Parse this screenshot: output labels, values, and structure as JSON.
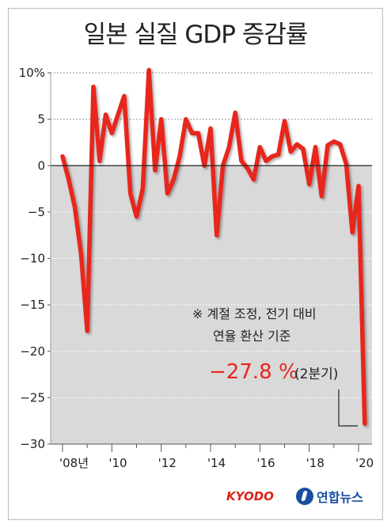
{
  "title": "일본 실질 GDP 증감률",
  "note_line1": "※ 계절 조정, 전기 대비",
  "note_line2": "연율 환산 기준",
  "callout": {
    "value": "−27.8 %",
    "period": "(2분기)",
    "color": "#e8261c"
  },
  "credits": {
    "kyodo": "KYODO",
    "yonhap": "연합뉴스",
    "kyodo_color": "#d9241b",
    "yonhap_color": "#1a4fa0"
  },
  "chart_data": {
    "type": "line",
    "title": "일본 실질 GDP 증감률",
    "ylim": [
      -30,
      10
    ],
    "yticks": [
      {
        "value": 10,
        "label": "10%"
      },
      {
        "value": 5,
        "label": "5"
      },
      {
        "value": 0,
        "label": "0"
      },
      {
        "value": -5,
        "label": "−5"
      },
      {
        "value": -10,
        "label": "−10"
      },
      {
        "value": -15,
        "label": "−15"
      },
      {
        "value": -20,
        "label": "−20"
      },
      {
        "value": -25,
        "label": "−25"
      },
      {
        "value": -30,
        "label": "−30"
      }
    ],
    "xlim": [
      2008,
      2020.5
    ],
    "xticks": [
      {
        "value": 2008,
        "label": "'08년"
      },
      {
        "value": 2010,
        "label": "'10"
      },
      {
        "value": 2012,
        "label": "'12"
      },
      {
        "value": 2014,
        "label": "'14"
      },
      {
        "value": 2016,
        "label": "'16"
      },
      {
        "value": 2018,
        "label": "'18"
      },
      {
        "value": 2020,
        "label": "'20"
      }
    ],
    "grid": "horizontal dotted",
    "shading_below_zero": "#d9d9d9",
    "line_color": "#e8261c",
    "series": [
      {
        "x": [
          2008.0,
          2008.25,
          2008.5,
          2008.75,
          2009.0,
          2009.25,
          2009.5,
          2009.75,
          2010.0,
          2010.25,
          2010.5,
          2010.75,
          2011.0,
          2011.25,
          2011.5,
          2011.75,
          2012.0,
          2012.25,
          2012.5,
          2012.75,
          2013.0,
          2013.25,
          2013.5,
          2013.75,
          2014.0,
          2014.25,
          2014.5,
          2014.75,
          2015.0,
          2015.25,
          2015.5,
          2015.75,
          2016.0,
          2016.25,
          2016.5,
          2016.75,
          2017.0,
          2017.25,
          2017.5,
          2017.75,
          2018.0,
          2018.25,
          2018.5,
          2018.75,
          2019.0,
          2019.25,
          2019.5,
          2019.75,
          2020.0,
          2020.25
        ],
        "values": [
          1.0,
          -1.5,
          -4.5,
          -9.5,
          -17.8,
          8.5,
          0.5,
          5.5,
          3.5,
          5.5,
          7.5,
          -3.0,
          -5.5,
          -2.5,
          10.3,
          -0.5,
          5.0,
          -3.0,
          -1.5,
          1.0,
          5.0,
          3.5,
          3.5,
          0.0,
          4.0,
          -7.5,
          0.0,
          2.0,
          5.7,
          0.5,
          -0.3,
          -1.5,
          2.0,
          0.5,
          1.0,
          1.2,
          4.8,
          1.5,
          2.3,
          1.8,
          -2.0,
          2.0,
          -3.3,
          2.2,
          2.6,
          2.3,
          0.2,
          -7.2,
          -2.2,
          -27.8
        ]
      }
    ]
  }
}
